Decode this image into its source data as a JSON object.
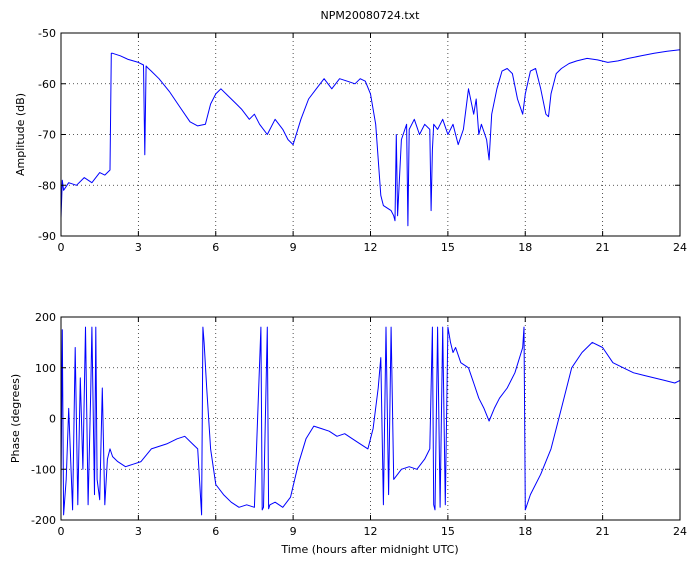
{
  "chart_data": [
    {
      "type": "line",
      "title": "NPM20080724.txt",
      "xlabel": "",
      "ylabel": "Amplitude (dB)",
      "xlim": [
        0,
        24
      ],
      "ylim": [
        -90,
        -50
      ],
      "xticks": [
        0,
        3,
        6,
        9,
        12,
        15,
        18,
        21,
        24
      ],
      "yticks": [
        -90,
        -80,
        -70,
        -60,
        -50
      ],
      "grid": true,
      "series": [
        {
          "color": "#0000ff",
          "x": [
            0,
            0.05,
            0.1,
            0.3,
            0.6,
            0.9,
            1.2,
            1.5,
            1.7,
            1.9,
            1.95,
            2.0,
            2.3,
            2.6,
            3.0,
            3.2,
            3.25,
            3.3,
            3.35,
            3.5,
            3.8,
            4.2,
            4.6,
            5.0,
            5.3,
            5.6,
            5.8,
            6.0,
            6.2,
            6.5,
            6.8,
            7.0,
            7.3,
            7.5,
            7.7,
            8.0,
            8.3,
            8.6,
            8.8,
            9.0,
            9.3,
            9.6,
            9.9,
            10.2,
            10.5,
            10.8,
            11.1,
            11.4,
            11.6,
            11.8,
            12.0,
            12.2,
            12.4,
            12.5,
            12.8,
            12.9,
            12.95,
            13.0,
            13.05,
            13.2,
            13.4,
            13.45,
            13.5,
            13.7,
            13.9,
            14.1,
            14.3,
            14.35,
            14.4,
            14.45,
            14.6,
            14.8,
            15.0,
            15.2,
            15.4,
            15.6,
            15.8,
            16.0,
            16.1,
            16.2,
            16.3,
            16.5,
            16.6,
            16.7,
            16.9,
            17.1,
            17.3,
            17.5,
            17.7,
            17.9,
            18.0,
            18.2,
            18.4,
            18.6,
            18.8,
            18.9,
            19.0,
            19.2,
            19.4,
            19.7,
            20.0,
            20.4,
            20.8,
            21.2,
            21.6,
            22.0,
            22.5,
            23.0,
            23.5,
            24.0
          ],
          "values": [
            -86.5,
            -79,
            -81,
            -79.5,
            -80,
            -78.5,
            -79.5,
            -77.5,
            -78,
            -77,
            -54,
            -54,
            -54.5,
            -55.2,
            -55.8,
            -56.3,
            -74,
            -56.5,
            -56.8,
            -57.5,
            -59,
            -61.5,
            -64.5,
            -67.5,
            -68.3,
            -68,
            -64,
            -62,
            -61,
            -62.5,
            -64,
            -65,
            -67,
            -66,
            -68,
            -70,
            -67,
            -69,
            -71,
            -72,
            -67,
            -63,
            -61,
            -59,
            -61,
            -59,
            -59.5,
            -60,
            -59,
            -59.5,
            -62,
            -68,
            -82,
            -84,
            -85,
            -86,
            -87,
            -70,
            -86,
            -71,
            -68,
            -88,
            -69,
            -67,
            -70,
            -68,
            -69,
            -85,
            -73,
            -68,
            -69,
            -67,
            -70,
            -68,
            -72,
            -69,
            -61,
            -66,
            -63,
            -70,
            -68,
            -71,
            -75,
            -66,
            -61,
            -57.5,
            -57,
            -58,
            -63,
            -66,
            -62,
            -57.5,
            -57,
            -61,
            -66,
            -66.5,
            -62,
            -58,
            -57,
            -56,
            -55.5,
            -55,
            -55.3,
            -55.8,
            -55.5,
            -55,
            -54.5,
            -54,
            -53.6,
            -53.3
          ]
        }
      ]
    },
    {
      "type": "line",
      "title": "",
      "xlabel": "Time (hours after midnight UTC)",
      "ylabel": "Phase (degrees)",
      "xlim": [
        0,
        24
      ],
      "ylim": [
        -200,
        200
      ],
      "xticks": [
        0,
        3,
        6,
        9,
        12,
        15,
        18,
        21,
        24
      ],
      "yticks": [
        -200,
        -100,
        0,
        100,
        200
      ],
      "grid": true,
      "series": [
        {
          "color": "#0000ff",
          "x": [
            0,
            0.05,
            0.1,
            0.2,
            0.3,
            0.45,
            0.55,
            0.65,
            0.75,
            0.85,
            0.95,
            1.05,
            1.15,
            1.2,
            1.3,
            1.35,
            1.4,
            1.5,
            1.6,
            1.7,
            1.8,
            1.9,
            2.0,
            2.2,
            2.5,
            2.8,
            3.1,
            3.5,
            3.8,
            4.1,
            4.5,
            4.8,
            5.1,
            5.3,
            5.45,
            5.5,
            5.55,
            5.65,
            5.8,
            6.0,
            6.3,
            6.6,
            6.9,
            7.2,
            7.5,
            7.75,
            7.8,
            7.85,
            8.0,
            8.05,
            8.1,
            8.3,
            8.6,
            8.9,
            9.2,
            9.5,
            9.8,
            10.1,
            10.4,
            10.7,
            11.0,
            11.3,
            11.6,
            11.9,
            12.1,
            12.3,
            12.4,
            12.5,
            12.6,
            12.7,
            12.8,
            12.9,
            13.2,
            13.5,
            13.8,
            14.1,
            14.3,
            14.4,
            14.45,
            14.5,
            14.6,
            14.7,
            14.8,
            14.9,
            15.0,
            15.1,
            15.2,
            15.3,
            15.5,
            15.8,
            16.0,
            16.2,
            16.4,
            16.6,
            16.8,
            17.0,
            17.3,
            17.6,
            17.9,
            17.95,
            18.0,
            18.2,
            18.6,
            19.0,
            19.4,
            19.8,
            20.2,
            20.6,
            21.0,
            21.4,
            21.8,
            22.2,
            22.6,
            23.0,
            23.4,
            23.8,
            24.0
          ],
          "values": [
            -140,
            175,
            -190,
            -120,
            20,
            -180,
            140,
            -170,
            80,
            -100,
            180,
            -170,
            50,
            180,
            -150,
            180,
            -120,
            -160,
            60,
            -170,
            -80,
            -60,
            -75,
            -85,
            -95,
            -90,
            -85,
            -60,
            -55,
            -50,
            -40,
            -35,
            -50,
            -60,
            -190,
            180,
            150,
            60,
            -60,
            -130,
            -150,
            -165,
            -175,
            -170,
            -175,
            180,
            -180,
            -175,
            180,
            -178,
            -170,
            -165,
            -175,
            -155,
            -90,
            -40,
            -15,
            -20,
            -25,
            -35,
            -30,
            -40,
            -50,
            -60,
            -20,
            60,
            120,
            -170,
            180,
            -150,
            180,
            -120,
            -100,
            -95,
            -100,
            -80,
            -60,
            180,
            -170,
            -180,
            180,
            -175,
            180,
            -170,
            180,
            150,
            130,
            140,
            110,
            100,
            70,
            40,
            20,
            -5,
            20,
            40,
            60,
            90,
            140,
            180,
            -180,
            -150,
            -110,
            -60,
            20,
            100,
            130,
            150,
            140,
            110,
            100,
            90,
            85,
            80,
            75,
            70,
            75
          ]
        }
      ]
    }
  ]
}
